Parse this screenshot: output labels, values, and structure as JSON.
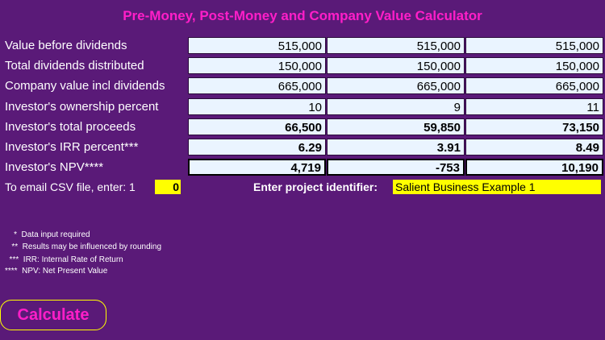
{
  "title": "Pre-Money, Post-Money and Company Value Calculator",
  "rows": [
    {
      "label": "Value before dividends",
      "values": [
        "515,000",
        "515,000",
        "515,000"
      ]
    },
    {
      "label": "Total dividends distributed",
      "values": [
        "150,000",
        "150,000",
        "150,000"
      ]
    },
    {
      "label": "Company value incl dividends",
      "values": [
        "665,000",
        "665,000",
        "665,000"
      ]
    },
    {
      "label": "Investor's ownership percent",
      "values": [
        "10",
        "9",
        "11"
      ]
    },
    {
      "label": "Investor's total proceeds",
      "values": [
        "66,500",
        "59,850",
        "73,150"
      ]
    },
    {
      "label": "Investor's IRR percent***",
      "values": [
        "6.29",
        "3.91",
        "8.49"
      ]
    },
    {
      "label": "Investor's NPV****",
      "values": [
        "4,719",
        "-753",
        "10,190"
      ]
    }
  ],
  "email": {
    "label": "To email  CSV file, enter:  1",
    "value": "0"
  },
  "project": {
    "label": "Enter project identifier:",
    "value": "Salient Business Example 1"
  },
  "notes": [
    "    *  Data input required",
    "   **  Results may be influenced by rounding",
    "  ***  IRR: Internal Rate of Return",
    "****  NPV: Net Present Value"
  ],
  "calculate_label": "Calculate",
  "colors": {
    "background": "#5a1a78",
    "title": "#ff1ec8",
    "input_bg": "#ffff00",
    "cell_bg": "#eaf4ff"
  }
}
